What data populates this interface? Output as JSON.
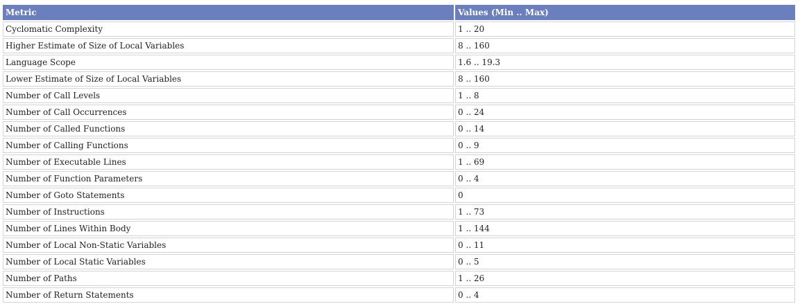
{
  "table": {
    "headers": [
      "Metric",
      "Values (Min .. Max)"
    ],
    "rows": [
      [
        "Cyclomatic Complexity",
        "1 .. 20"
      ],
      [
        "Higher Estimate of Size of Local Variables",
        "8 .. 160"
      ],
      [
        "Language Scope",
        "1.6 .. 19.3"
      ],
      [
        "Lower Estimate of Size of Local Variables",
        "8 .. 160"
      ],
      [
        "Number of Call Levels",
        "1 .. 8"
      ],
      [
        "Number of Call Occurrences",
        "0 .. 24"
      ],
      [
        "Number of Called Functions",
        "0 .. 14"
      ],
      [
        "Number of Calling Functions",
        "0 .. 9"
      ],
      [
        "Number of Executable Lines",
        "1 .. 69"
      ],
      [
        "Number of Function Parameters",
        "0 .. 4"
      ],
      [
        "Number of Goto Statements",
        "0"
      ],
      [
        "Number of Instructions",
        "1 .. 73"
      ],
      [
        "Number of Lines Within Body",
        "1 .. 144"
      ],
      [
        "Number of Local Non-Static Variables",
        "0 .. 11"
      ],
      [
        "Number of Local Static Variables",
        "0 .. 5"
      ],
      [
        "Number of Paths",
        "1 .. 26"
      ],
      [
        "Number of Return Statements",
        "0 .. 4"
      ]
    ]
  }
}
